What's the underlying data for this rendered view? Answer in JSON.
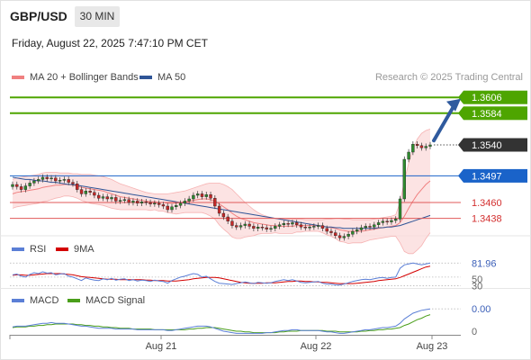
{
  "header": {
    "symbol": "GBP/USD",
    "timeframe": "30 MIN",
    "datetime": "Friday, August 22, 2025 7:47:10 PM CET",
    "research": "Research © 2025 Trading Central"
  },
  "legend": {
    "main": [
      {
        "label": "MA 20 + Bollinger Bands",
        "color": "#f08080"
      },
      {
        "label": "MA 50",
        "color": "#2f5597"
      }
    ],
    "rsi": [
      {
        "label": "RSI",
        "color": "#5b7fd6"
      },
      {
        "label": "9MA",
        "color": "#d40000"
      }
    ],
    "macd": [
      {
        "label": "MACD",
        "color": "#5b7fd6"
      },
      {
        "label": "MACD Signal",
        "color": "#4a9e1a"
      }
    ]
  },
  "colors": {
    "bull": "#2e8b2e",
    "bear": "#c62828",
    "target": "#4ea500",
    "support": "#e05a5a",
    "pivot": "#1a63c9",
    "current": "#333333",
    "arrow": "#2f5a9e"
  },
  "chart_data": [
    {
      "type": "candlestick",
      "panel": "price",
      "x_ticks": [
        "Aug 21",
        "Aug 22",
        "Aug 23"
      ],
      "ylim": [
        1.341,
        1.362
      ],
      "levels": [
        {
          "value": 1.3606,
          "label": "1.3606",
          "kind": "target"
        },
        {
          "value": 1.3584,
          "label": "1.3584",
          "kind": "target"
        },
        {
          "value": 1.354,
          "label": "1.3540",
          "kind": "current"
        },
        {
          "value": 1.3497,
          "label": "1.3497",
          "kind": "pivot"
        },
        {
          "value": 1.346,
          "label": "1.3460",
          "kind": "support"
        },
        {
          "value": 1.3438,
          "label": "1.3438",
          "kind": "support"
        }
      ],
      "close": [
        1.3485,
        1.3482,
        1.3478,
        1.3483,
        1.3487,
        1.349,
        1.3492,
        1.3495,
        1.3493,
        1.3494,
        1.349,
        1.3491,
        1.3492,
        1.3488,
        1.3486,
        1.3478,
        1.3472,
        1.3476,
        1.3474,
        1.347,
        1.3466,
        1.3468,
        1.3465,
        1.3467,
        1.3462,
        1.3463,
        1.3464,
        1.346,
        1.3462,
        1.3459,
        1.3461,
        1.346,
        1.3458,
        1.3459,
        1.3457,
        1.3455,
        1.345,
        1.3454,
        1.3456,
        1.3459,
        1.3462,
        1.3465,
        1.347,
        1.3472,
        1.3468,
        1.3471,
        1.3466,
        1.3455,
        1.3445,
        1.344,
        1.3434,
        1.3428,
        1.3426,
        1.3428,
        1.343,
        1.3427,
        1.3424,
        1.3426,
        1.3425,
        1.3423,
        1.3424,
        1.3427,
        1.3429,
        1.3431,
        1.343,
        1.3432,
        1.3429,
        1.3426,
        1.3425,
        1.3426,
        1.3427,
        1.3428,
        1.3424,
        1.342,
        1.3418,
        1.3414,
        1.3411,
        1.3413,
        1.3416,
        1.342,
        1.3422,
        1.3425,
        1.3427,
        1.3426,
        1.3429,
        1.3432,
        1.3434,
        1.3433,
        1.3435,
        1.3437,
        1.3465,
        1.352,
        1.353,
        1.3541,
        1.3539,
        1.3536,
        1.3538,
        1.354
      ],
      "ma20": [
        1.3472,
        1.3474,
        1.3475,
        1.3476,
        1.3477,
        1.3478,
        1.3479,
        1.3481,
        1.3482,
        1.3483,
        1.3484,
        1.3484,
        1.3485,
        1.3485,
        1.3484,
        1.3483,
        1.3481,
        1.348,
        1.3479,
        1.3478,
        1.3477,
        1.3476,
        1.3474,
        1.3472,
        1.347,
        1.3468,
        1.3467,
        1.3466,
        1.3465,
        1.3464,
        1.3463,
        1.3462,
        1.3461,
        1.3461,
        1.346,
        1.346,
        1.3459,
        1.3459,
        1.3459,
        1.346,
        1.3461,
        1.3462,
        1.3463,
        1.3464,
        1.3465,
        1.3465,
        1.3464,
        1.3462,
        1.3458,
        1.3454,
        1.345,
        1.3445,
        1.3441,
        1.3438,
        1.3436,
        1.3434,
        1.3432,
        1.3431,
        1.343,
        1.3429,
        1.3428,
        1.3428,
        1.3427,
        1.3427,
        1.3427,
        1.3427,
        1.3428,
        1.3428,
        1.3428,
        1.3428,
        1.3428,
        1.3428,
        1.3427,
        1.3426,
        1.3425,
        1.3424,
        1.3422,
        1.3421,
        1.342,
        1.342,
        1.342,
        1.342,
        1.3421,
        1.3422,
        1.3423,
        1.3424,
        1.3425,
        1.3426,
        1.3427,
        1.3428,
        1.3432,
        1.3441,
        1.3452,
        1.3462,
        1.3471,
        1.3478,
        1.3485,
        1.349
      ],
      "bb_upper": [
        1.3492,
        1.3494,
        1.3495,
        1.3496,
        1.3497,
        1.3498,
        1.3499,
        1.3501,
        1.3502,
        1.3502,
        1.3502,
        1.3501,
        1.3501,
        1.3501,
        1.35,
        1.35,
        1.3499,
        1.3499,
        1.3499,
        1.3498,
        1.3497,
        1.3496,
        1.3494,
        1.3492,
        1.3489,
        1.3486,
        1.3484,
        1.3482,
        1.348,
        1.3478,
        1.3476,
        1.3474,
        1.3473,
        1.3472,
        1.3472,
        1.3472,
        1.3472,
        1.3473,
        1.3474,
        1.3475,
        1.3476,
        1.3478,
        1.348,
        1.3482,
        1.3484,
        1.3486,
        1.3487,
        1.3487,
        1.3487,
        1.3485,
        1.3482,
        1.3478,
        1.3472,
        1.3466,
        1.346,
        1.3455,
        1.345,
        1.3446,
        1.3443,
        1.3441,
        1.3439,
        1.3438,
        1.3437,
        1.3437,
        1.3437,
        1.3437,
        1.3437,
        1.3437,
        1.3436,
        1.3436,
        1.3436,
        1.3436,
        1.3436,
        1.3437,
        1.3437,
        1.3438,
        1.3438,
        1.3437,
        1.3437,
        1.3436,
        1.3436,
        1.3436,
        1.3436,
        1.3436,
        1.3437,
        1.3438,
        1.3439,
        1.344,
        1.3441,
        1.3443,
        1.346,
        1.349,
        1.3515,
        1.3535,
        1.3548,
        1.3556,
        1.356,
        1.3562
      ],
      "bb_lower": [
        1.3452,
        1.3454,
        1.3455,
        1.3456,
        1.3457,
        1.3458,
        1.3459,
        1.3461,
        1.3462,
        1.3464,
        1.3466,
        1.3467,
        1.3469,
        1.3469,
        1.3468,
        1.3466,
        1.3463,
        1.3461,
        1.3459,
        1.3458,
        1.3457,
        1.3456,
        1.3454,
        1.3452,
        1.3451,
        1.345,
        1.345,
        1.345,
        1.345,
        1.345,
        1.345,
        1.345,
        1.3449,
        1.345,
        1.3448,
        1.3448,
        1.3446,
        1.3445,
        1.3444,
        1.3445,
        1.3446,
        1.3446,
        1.3446,
        1.3446,
        1.3446,
        1.3444,
        1.3441,
        1.3437,
        1.3429,
        1.3423,
        1.3418,
        1.3412,
        1.341,
        1.341,
        1.3412,
        1.3413,
        1.3414,
        1.3416,
        1.3417,
        1.3417,
        1.3417,
        1.3418,
        1.3417,
        1.3417,
        1.3417,
        1.3417,
        1.3419,
        1.3419,
        1.342,
        1.342,
        1.342,
        1.342,
        1.3418,
        1.3415,
        1.3413,
        1.341,
        1.3406,
        1.3405,
        1.3403,
        1.3404,
        1.3404,
        1.3404,
        1.3406,
        1.3408,
        1.3409,
        1.341,
        1.3411,
        1.3412,
        1.3413,
        1.3413,
        1.3404,
        1.3392,
        1.3389,
        1.3389,
        1.3394,
        1.34,
        1.341,
        1.3418
      ],
      "ma50": [
        1.3495,
        1.3494,
        1.3493,
        1.3492,
        1.3492,
        1.3491,
        1.349,
        1.349,
        1.3489,
        1.3488,
        1.3488,
        1.3487,
        1.3486,
        1.3485,
        1.3485,
        1.3484,
        1.3483,
        1.3482,
        1.3481,
        1.348,
        1.3479,
        1.3478,
        1.3477,
        1.3476,
        1.3475,
        1.3474,
        1.3473,
        1.3472,
        1.3471,
        1.347,
        1.3469,
        1.3468,
        1.3467,
        1.3466,
        1.3465,
        1.3464,
        1.3463,
        1.3462,
        1.3461,
        1.346,
        1.3459,
        1.3458,
        1.3457,
        1.3456,
        1.3455,
        1.3454,
        1.3453,
        1.3452,
        1.3451,
        1.345,
        1.3449,
        1.3448,
        1.3447,
        1.3446,
        1.3445,
        1.3444,
        1.3443,
        1.3442,
        1.3441,
        1.344,
        1.3439,
        1.3438,
        1.3437,
        1.3436,
        1.3435,
        1.3434,
        1.3433,
        1.3432,
        1.3431,
        1.343,
        1.3429,
        1.3428,
        1.3427,
        1.3426,
        1.3426,
        1.3425,
        1.3425,
        1.3424,
        1.3424,
        1.3424,
        1.3424,
        1.3424,
        1.3424,
        1.3424,
        1.3424,
        1.3425,
        1.3425,
        1.3426,
        1.3426,
        1.3427,
        1.3428,
        1.343,
        1.3432,
        1.3434,
        1.3436,
        1.3438,
        1.344,
        1.3442
      ]
    },
    {
      "type": "line",
      "panel": "rsi",
      "ylim": [
        25,
        95
      ],
      "tick_labels": [
        "81.96",
        "50",
        "30"
      ],
      "series": [
        {
          "name": "RSI",
          "values": [
            55,
            57,
            52,
            50,
            56,
            60,
            58,
            62,
            59,
            60,
            55,
            57,
            58,
            52,
            50,
            46,
            42,
            48,
            45,
            43,
            42,
            46,
            44,
            47,
            43,
            45,
            46,
            42,
            44,
            41,
            43,
            42,
            40,
            43,
            41,
            40,
            36,
            42,
            46,
            50,
            52,
            55,
            58,
            56,
            50,
            52,
            46,
            40,
            36,
            35,
            34,
            33,
            35,
            37,
            39,
            37,
            35,
            38,
            37,
            36,
            37,
            40,
            42,
            44,
            42,
            44,
            41,
            38,
            37,
            38,
            39,
            40,
            36,
            34,
            34,
            32,
            32,
            34,
            37,
            40,
            42,
            44,
            45,
            44,
            46,
            48,
            49,
            47,
            49,
            50,
            70,
            78,
            80,
            82,
            80,
            78,
            80,
            81.96
          ]
        },
        {
          "name": "9MA",
          "values": [
            54,
            55,
            55,
            54,
            54,
            55,
            56,
            57,
            58,
            58,
            58,
            58,
            57,
            56,
            55,
            53,
            51,
            50,
            49,
            48,
            47,
            46,
            45,
            45,
            45,
            44,
            44,
            44,
            44,
            44,
            44,
            43,
            43,
            42,
            42,
            42,
            41,
            41,
            41,
            42,
            43,
            44,
            46,
            47,
            48,
            49,
            49,
            49,
            48,
            46,
            44,
            42,
            40,
            38,
            37,
            36,
            36,
            36,
            36,
            37,
            37,
            37,
            38,
            39,
            40,
            40,
            41,
            41,
            40,
            40,
            39,
            39,
            38,
            38,
            37,
            36,
            35,
            35,
            35,
            35,
            36,
            37,
            38,
            39,
            40,
            42,
            43,
            44,
            45,
            46,
            49,
            53,
            57,
            61,
            65,
            69,
            73,
            75
          ]
        }
      ]
    },
    {
      "type": "line",
      "panel": "macd",
      "ylim": [
        -0.001,
        0.003
      ],
      "tick_labels": [
        "0.00",
        "0"
      ],
      "series": [
        {
          "name": "MACD",
          "values": [
            0.0001,
            0.0002,
            0.0002,
            0.0002,
            0.0003,
            0.0004,
            0.0005,
            0.0006,
            0.0006,
            0.0007,
            0.0006,
            0.0006,
            0.0006,
            0.0005,
            0.0004,
            0.0003,
            0.0002,
            0.0002,
            0.0001,
            0.0,
            -0.0001,
            -0.0001,
            -0.0001,
            -0.0001,
            -0.0002,
            -0.0002,
            -0.0002,
            -0.0002,
            -0.0002,
            -0.0003,
            -0.0003,
            -0.0003,
            -0.0003,
            -0.0003,
            -0.0003,
            -0.0003,
            -0.0004,
            -0.0004,
            -0.0003,
            -0.0002,
            -0.0001,
            0.0,
            0.0001,
            0.0002,
            0.0002,
            0.0002,
            0.0001,
            -0.0001,
            -0.0003,
            -0.0005,
            -0.0006,
            -0.0007,
            -0.0008,
            -0.0008,
            -0.0008,
            -0.0008,
            -0.0008,
            -0.0008,
            -0.0008,
            -0.0007,
            -0.0007,
            -0.0006,
            -0.0005,
            -0.0004,
            -0.0004,
            -0.0003,
            -0.0003,
            -0.0004,
            -0.0004,
            -0.0004,
            -0.0004,
            -0.0004,
            -0.0005,
            -0.0006,
            -0.0006,
            -0.0007,
            -0.0008,
            -0.0008,
            -0.0007,
            -0.0006,
            -0.0005,
            -0.0004,
            -0.0003,
            -0.0003,
            -0.0002,
            -0.0001,
            0.0,
            0.0,
            0.0001,
            0.0002,
            0.0006,
            0.0012,
            0.0016,
            0.002,
            0.0022,
            0.0024,
            0.0025,
            0.0026
          ]
        },
        {
          "name": "MACD Signal",
          "values": [
            0.0,
            0.0001,
            0.0001,
            0.0001,
            0.0002,
            0.0002,
            0.0003,
            0.0003,
            0.0004,
            0.0004,
            0.0005,
            0.0005,
            0.0005,
            0.0005,
            0.0005,
            0.0004,
            0.0004,
            0.0003,
            0.0003,
            0.0002,
            0.0002,
            0.0001,
            0.0001,
            0.0,
            0.0,
            -0.0001,
            -0.0001,
            -0.0001,
            -0.0002,
            -0.0002,
            -0.0002,
            -0.0002,
            -0.0002,
            -0.0003,
            -0.0003,
            -0.0003,
            -0.0003,
            -0.0003,
            -0.0003,
            -0.0003,
            -0.0003,
            -0.0002,
            -0.0002,
            -0.0001,
            -0.0001,
            0.0,
            0.0,
            0.0,
            -0.0001,
            -0.0002,
            -0.0003,
            -0.0004,
            -0.0005,
            -0.0005,
            -0.0006,
            -0.0006,
            -0.0007,
            -0.0007,
            -0.0007,
            -0.0007,
            -0.0007,
            -0.0007,
            -0.0006,
            -0.0006,
            -0.0005,
            -0.0005,
            -0.0005,
            -0.0004,
            -0.0004,
            -0.0004,
            -0.0004,
            -0.0004,
            -0.0004,
            -0.0005,
            -0.0005,
            -0.0005,
            -0.0006,
            -0.0006,
            -0.0006,
            -0.0006,
            -0.0006,
            -0.0005,
            -0.0005,
            -0.0004,
            -0.0004,
            -0.0003,
            -0.0003,
            -0.0002,
            -0.0002,
            -0.0001,
            0.0,
            0.0003,
            0.0005,
            0.0008,
            0.0011,
            0.0013,
            0.0016,
            0.0018
          ]
        }
      ]
    }
  ]
}
